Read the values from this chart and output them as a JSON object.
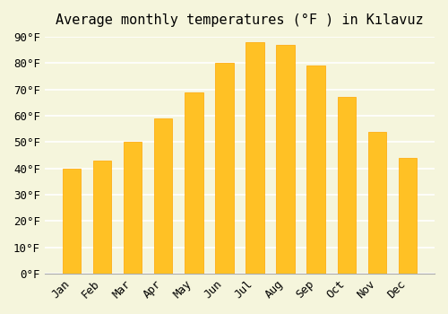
{
  "title": "Average monthly temperatures (°F ) in Kılavuz",
  "months": [
    "Jan",
    "Feb",
    "Mar",
    "Apr",
    "May",
    "Jun",
    "Jul",
    "Aug",
    "Sep",
    "Oct",
    "Nov",
    "Dec"
  ],
  "values": [
    40,
    43,
    50,
    59,
    69,
    80,
    88,
    87,
    79,
    67,
    54,
    44
  ],
  "bar_color_main": "#FFC125",
  "bar_color_edge": "#FFA500",
  "background_color": "#F5F5DC",
  "grid_color": "#FFFFFF",
  "ylim": [
    0,
    90
  ],
  "yticks": [
    0,
    10,
    20,
    30,
    40,
    50,
    60,
    70,
    80,
    90
  ],
  "title_fontsize": 11,
  "tick_fontsize": 9,
  "font_family": "monospace"
}
